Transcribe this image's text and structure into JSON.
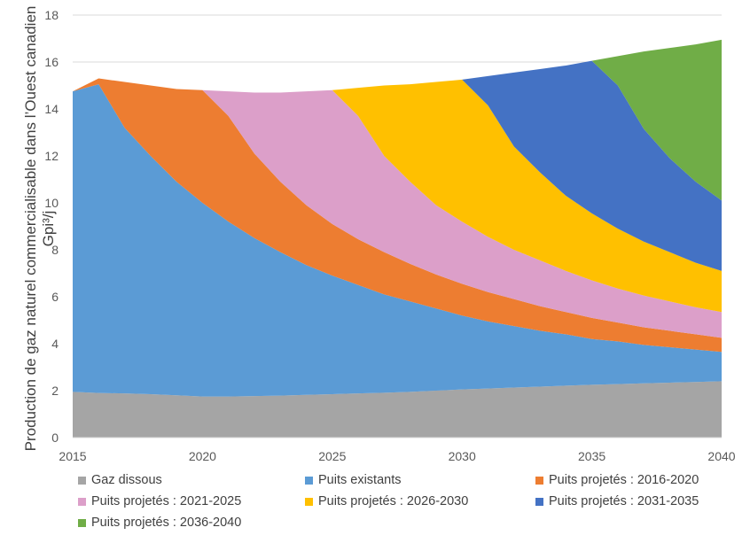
{
  "chart_data": {
    "type": "area",
    "stacked": true,
    "title": "",
    "xlabel": "",
    "ylabel": "Production de gaz naturel commercialisable dans l’Ouest canadien",
    "ylabel_unit": "Gpi³/j",
    "xlim": [
      2015,
      2040
    ],
    "ylim": [
      0,
      18
    ],
    "x_ticks": [
      "2015",
      "2020",
      "2025",
      "2030",
      "2035",
      "2040"
    ],
    "y_ticks": [
      "0",
      "2",
      "4",
      "6",
      "8",
      "10",
      "12",
      "14",
      "16",
      "18"
    ],
    "grid": true,
    "legend_position": "bottom",
    "x": [
      2015,
      2016,
      2017,
      2018,
      2019,
      2020,
      2021,
      2022,
      2023,
      2024,
      2025,
      2026,
      2027,
      2028,
      2029,
      2030,
      2031,
      2032,
      2033,
      2034,
      2035,
      2036,
      2037,
      2038,
      2039,
      2040
    ],
    "series": [
      {
        "name": "Gaz dissous",
        "color": "#A5A5A5",
        "values": [
          1.95,
          1.9,
          1.88,
          1.85,
          1.8,
          1.75,
          1.75,
          1.77,
          1.79,
          1.82,
          1.85,
          1.88,
          1.91,
          1.95,
          2.0,
          2.05,
          2.09,
          2.13,
          2.17,
          2.21,
          2.25,
          2.28,
          2.31,
          2.34,
          2.37,
          2.4
        ]
      },
      {
        "name": "Puits existants",
        "color": "#5B9BD5",
        "values": [
          12.8,
          13.15,
          11.32,
          10.15,
          9.1,
          8.25,
          7.45,
          6.73,
          6.11,
          5.53,
          5.05,
          4.62,
          4.19,
          3.85,
          3.5,
          3.15,
          2.86,
          2.62,
          2.38,
          2.19,
          1.95,
          1.82,
          1.64,
          1.51,
          1.38,
          1.25
        ]
      },
      {
        "name": "Puits projetés : 2016-2020",
        "color": "#ED7D31",
        "values": [
          0,
          0.25,
          1.95,
          3.0,
          3.95,
          4.8,
          4.5,
          3.6,
          3.0,
          2.55,
          2.2,
          1.95,
          1.8,
          1.6,
          1.45,
          1.35,
          1.25,
          1.15,
          1.05,
          0.95,
          0.9,
          0.8,
          0.75,
          0.7,
          0.65,
          0.6
        ]
      },
      {
        "name": "Puits projetés : 2021-2025",
        "color": "#DC9FC9",
        "values": [
          0,
          0,
          0,
          0,
          0,
          0,
          1.05,
          2.6,
          3.8,
          4.85,
          5.7,
          5.25,
          4.1,
          3.5,
          2.95,
          2.65,
          2.35,
          2.1,
          1.95,
          1.75,
          1.6,
          1.45,
          1.35,
          1.25,
          1.15,
          1.1
        ]
      },
      {
        "name": "Puits projetés : 2026-2030",
        "color": "#FFC000",
        "values": [
          0,
          0,
          0,
          0,
          0,
          0,
          0,
          0,
          0,
          0,
          0,
          1.2,
          3.0,
          4.15,
          5.25,
          6.05,
          5.6,
          4.4,
          3.75,
          3.2,
          2.85,
          2.55,
          2.3,
          2.1,
          1.9,
          1.75
        ]
      },
      {
        "name": "Puits projetés : 2031-2035",
        "color": "#4472C4",
        "values": [
          0,
          0,
          0,
          0,
          0,
          0,
          0,
          0,
          0,
          0,
          0,
          0,
          0,
          0,
          0,
          0,
          1.25,
          3.15,
          4.4,
          5.55,
          6.5,
          6.1,
          4.8,
          4.0,
          3.45,
          3.0
        ]
      },
      {
        "name": "Puits projetés : 2036-2040",
        "color": "#70AD47",
        "values": [
          0,
          0,
          0,
          0,
          0,
          0,
          0,
          0,
          0,
          0,
          0,
          0,
          0,
          0,
          0,
          0,
          0,
          0,
          0,
          0,
          0,
          1.25,
          3.3,
          4.7,
          5.85,
          6.85
        ]
      }
    ]
  }
}
